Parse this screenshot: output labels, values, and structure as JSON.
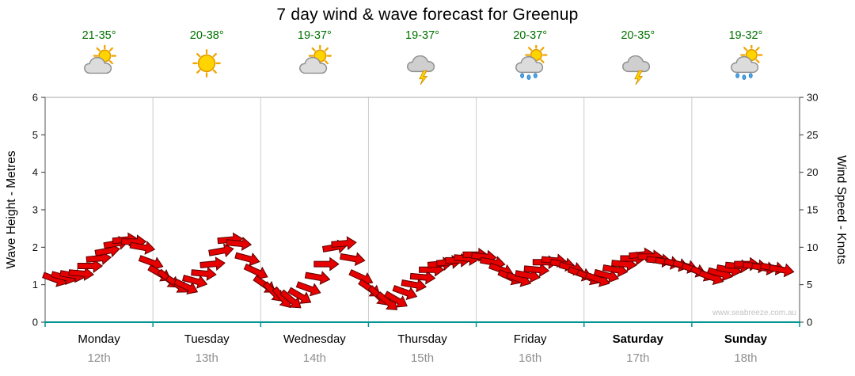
{
  "title": "7 day wind & wave forecast for Greenup",
  "watermark": "www.seabreeze.com.au",
  "colors": {
    "arrow_fill": "#e60000",
    "arrow_outline": "#5a0000",
    "bottom_axis": "#009494",
    "grid_line": "#cccccc",
    "plot_border": "#555555",
    "temp_text": "#007000",
    "date_text": "#8f8f8f"
  },
  "axes": {
    "left_label": "Wave Height - Metres",
    "right_label": "Wind Speed - Knots",
    "left_ticks": [
      0,
      1,
      2,
      3,
      4,
      5,
      6
    ],
    "right_ticks": [
      0,
      5,
      10,
      15,
      20,
      25,
      30
    ],
    "left_range": [
      0,
      6
    ],
    "right_range": [
      0,
      30
    ]
  },
  "days": [
    {
      "name": "Monday",
      "date": "12th",
      "temp": "21-35°",
      "icon": "sun-cloud",
      "bold": false
    },
    {
      "name": "Tuesday",
      "date": "13th",
      "temp": "20-38°",
      "icon": "sun",
      "bold": false
    },
    {
      "name": "Wednesday",
      "date": "14th",
      "temp": "19-37°",
      "icon": "sun-cloud",
      "bold": false
    },
    {
      "name": "Thursday",
      "date": "15th",
      "temp": "19-37°",
      "icon": "storm",
      "bold": false
    },
    {
      "name": "Friday",
      "date": "16th",
      "temp": "20-37°",
      "icon": "sun-cloud-rain",
      "bold": false
    },
    {
      "name": "Saturday",
      "date": "17th",
      "temp": "20-35°",
      "icon": "storm",
      "bold": true
    },
    {
      "name": "Sunday",
      "date": "18th",
      "temp": "19-32°",
      "icon": "sun-cloud-rain",
      "bold": true
    }
  ],
  "chart_data": {
    "type": "wind-arrows",
    "title": "7 day wind & wave forecast for Greenup",
    "categories": [
      "Monday 12th",
      "Tuesday 13th",
      "Wednesday 14th",
      "Thursday 15th",
      "Friday 16th",
      "Saturday 17th",
      "Sunday 18th"
    ],
    "x_unit": "hours",
    "x_range": [
      0,
      168
    ],
    "y_left": {
      "label": "Wave Height - Metres",
      "range": [
        0,
        6
      ]
    },
    "y_right": {
      "label": "Wind Speed - Knots",
      "range": [
        0,
        30
      ]
    },
    "legend": "none",
    "grid": "vertical-day-separators",
    "point_format": [
      "hour",
      "metres",
      "direction_deg"
    ],
    "points": [
      [
        0,
        1.15,
        20
      ],
      [
        2,
        1.2,
        15
      ],
      [
        4,
        1.25,
        10
      ],
      [
        6,
        1.3,
        5
      ],
      [
        8,
        1.5,
        0
      ],
      [
        10,
        1.7,
        -5
      ],
      [
        12,
        1.9,
        -10
      ],
      [
        14,
        2.1,
        -10
      ],
      [
        16,
        2.2,
        -5
      ],
      [
        18,
        2.15,
        0
      ],
      [
        20,
        2.0,
        10
      ],
      [
        22,
        1.6,
        20
      ],
      [
        24,
        1.3,
        30
      ],
      [
        26,
        1.15,
        40
      ],
      [
        28,
        1.0,
        35
      ],
      [
        30,
        0.95,
        25
      ],
      [
        32,
        1.1,
        15
      ],
      [
        34,
        1.3,
        5
      ],
      [
        36,
        1.55,
        -5
      ],
      [
        38,
        1.9,
        -10
      ],
      [
        40,
        2.2,
        -5
      ],
      [
        42,
        2.1,
        5
      ],
      [
        44,
        1.7,
        15
      ],
      [
        46,
        1.35,
        25
      ],
      [
        48,
        1.0,
        35
      ],
      [
        50,
        0.8,
        45
      ],
      [
        52,
        0.65,
        50
      ],
      [
        54,
        0.6,
        40
      ],
      [
        56,
        0.7,
        30
      ],
      [
        58,
        0.9,
        20
      ],
      [
        60,
        1.2,
        10
      ],
      [
        62,
        1.55,
        0
      ],
      [
        64,
        2.0,
        -10
      ],
      [
        66,
        2.1,
        -5
      ],
      [
        68,
        1.7,
        10
      ],
      [
        70,
        1.2,
        25
      ],
      [
        72,
        0.9,
        35
      ],
      [
        74,
        0.7,
        45
      ],
      [
        76,
        0.55,
        40
      ],
      [
        78,
        0.6,
        30
      ],
      [
        80,
        0.8,
        20
      ],
      [
        82,
        1.0,
        10
      ],
      [
        84,
        1.2,
        5
      ],
      [
        86,
        1.4,
        0
      ],
      [
        88,
        1.55,
        -5
      ],
      [
        90,
        1.6,
        -5
      ],
      [
        92,
        1.65,
        0
      ],
      [
        94,
        1.7,
        5
      ],
      [
        96,
        1.8,
        0
      ],
      [
        98,
        1.75,
        5
      ],
      [
        100,
        1.6,
        10
      ],
      [
        102,
        1.4,
        20
      ],
      [
        104,
        1.2,
        25
      ],
      [
        106,
        1.15,
        20
      ],
      [
        108,
        1.25,
        10
      ],
      [
        110,
        1.4,
        5
      ],
      [
        112,
        1.6,
        0
      ],
      [
        114,
        1.65,
        5
      ],
      [
        116,
        1.55,
        10
      ],
      [
        118,
        1.45,
        15
      ],
      [
        120,
        1.3,
        20
      ],
      [
        122,
        1.2,
        25
      ],
      [
        124,
        1.15,
        20
      ],
      [
        126,
        1.25,
        15
      ],
      [
        128,
        1.4,
        10
      ],
      [
        130,
        1.55,
        5
      ],
      [
        132,
        1.7,
        0
      ],
      [
        134,
        1.8,
        -5
      ],
      [
        136,
        1.75,
        0
      ],
      [
        138,
        1.65,
        5
      ],
      [
        140,
        1.6,
        10
      ],
      [
        142,
        1.55,
        15
      ],
      [
        144,
        1.5,
        15
      ],
      [
        146,
        1.4,
        20
      ],
      [
        148,
        1.3,
        25
      ],
      [
        150,
        1.2,
        20
      ],
      [
        152,
        1.3,
        15
      ],
      [
        154,
        1.4,
        10
      ],
      [
        156,
        1.5,
        5
      ],
      [
        158,
        1.55,
        0
      ],
      [
        160,
        1.5,
        5
      ],
      [
        162,
        1.45,
        10
      ],
      [
        164,
        1.45,
        10
      ],
      [
        166,
        1.4,
        10
      ]
    ]
  }
}
